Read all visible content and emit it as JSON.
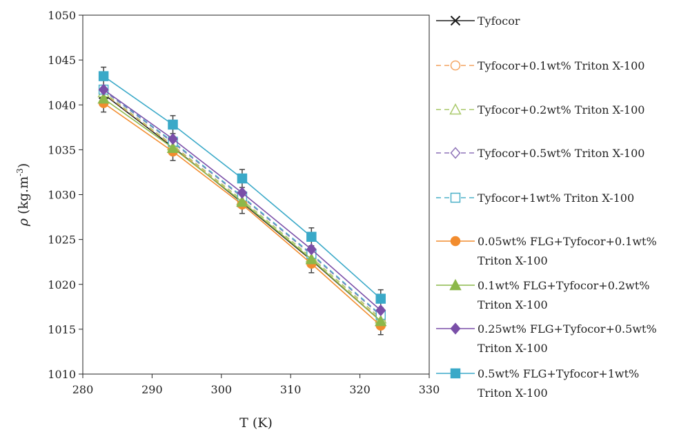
{
  "chart_data": {
    "type": "line",
    "xlabel": "T (K)",
    "ylabel_symbol": "ρ",
    "ylabel_unit": "(kg.m",
    "ylabel_exp": "-3",
    "ylabel_close": ")",
    "xlim": [
      280,
      330
    ],
    "ylim": [
      1010,
      1050
    ],
    "xticks": [
      280,
      290,
      300,
      310,
      320,
      330
    ],
    "yticks": [
      1010,
      1015,
      1020,
      1025,
      1030,
      1035,
      1040,
      1045,
      1050
    ],
    "x": [
      283,
      293,
      303,
      313,
      323
    ],
    "grid": false,
    "legend_position": "right",
    "series": [
      {
        "name": "Tyfocor",
        "lines": [
          "Tyfocor"
        ],
        "color": "#1a1a1a",
        "dash": false,
        "marker": "x",
        "values": [
          1041.2,
          1035.3,
          1029.1,
          1022.7,
          1015.9
        ]
      },
      {
        "name": "Tyfocor+0.1wt% Triton X-100",
        "lines": [
          "Tyfocor+0.1wt% Triton X-100"
        ],
        "color": "#f4a460",
        "dash": true,
        "marker": "circle-open",
        "values": [
          1041.3,
          1035.4,
          1029.2,
          1022.8,
          1016.0
        ]
      },
      {
        "name": "Tyfocor+0.2wt% Triton X-100",
        "lines": [
          "Tyfocor+0.2wt% Triton X-100"
        ],
        "color": "#a9c96a",
        "dash": true,
        "marker": "triangle-open",
        "values": [
          1041.4,
          1035.5,
          1029.4,
          1023.0,
          1016.2
        ]
      },
      {
        "name": "Tyfocor+0.5wt% Triton X-100",
        "lines": [
          "Tyfocor+0.5wt% Triton X-100"
        ],
        "color": "#8e72b8",
        "dash": true,
        "marker": "diamond-open",
        "values": [
          1041.6,
          1035.8,
          1029.7,
          1023.3,
          1016.5
        ]
      },
      {
        "name": "Tyfocor+1wt% Triton X-100",
        "lines": [
          "Tyfocor+1wt% Triton X-100"
        ],
        "color": "#4bb0c8",
        "dash": true,
        "marker": "square-open",
        "values": [
          1041.7,
          1035.9,
          1029.8,
          1023.4,
          1016.6
        ]
      },
      {
        "name": "0.05wt% FLG+Tyfocor+0.1wt% Triton X-100",
        "lines": [
          "0.05wt% FLG+Tyfocor+0.1wt%",
          "Triton X-100"
        ],
        "color": "#f28c2e",
        "dash": false,
        "marker": "circle",
        "values": [
          1040.2,
          1034.8,
          1028.9,
          1022.3,
          1015.4
        ]
      },
      {
        "name": "0.1wt% FLG+Tyfocor+0.2wt% Triton X-100",
        "lines": [
          "0.1wt% FLG+Tyfocor+0.2wt%",
          "Triton X-100"
        ],
        "color": "#8cb84a",
        "dash": false,
        "marker": "triangle",
        "values": [
          1040.7,
          1035.2,
          1029.2,
          1022.8,
          1015.9
        ]
      },
      {
        "name": "0.25wt% FLG+Tyfocor+0.5wt% Triton X-100",
        "lines": [
          "0.25wt% FLG+Tyfocor+0.5wt%",
          "Triton X-100"
        ],
        "color": "#7a4fa8",
        "dash": false,
        "marker": "diamond",
        "values": [
          1041.7,
          1036.2,
          1030.2,
          1023.9,
          1017.1
        ]
      },
      {
        "name": "0.5wt% FLG+Tyfocor+1wt% Triton X-100",
        "lines": [
          "0.5wt% FLG+Tyfocor+1wt%",
          "Triton X-100"
        ],
        "color": "#3aa9c8",
        "dash": false,
        "marker": "square",
        "values": [
          1043.2,
          1037.8,
          1031.8,
          1025.3,
          1018.4
        ]
      }
    ]
  }
}
